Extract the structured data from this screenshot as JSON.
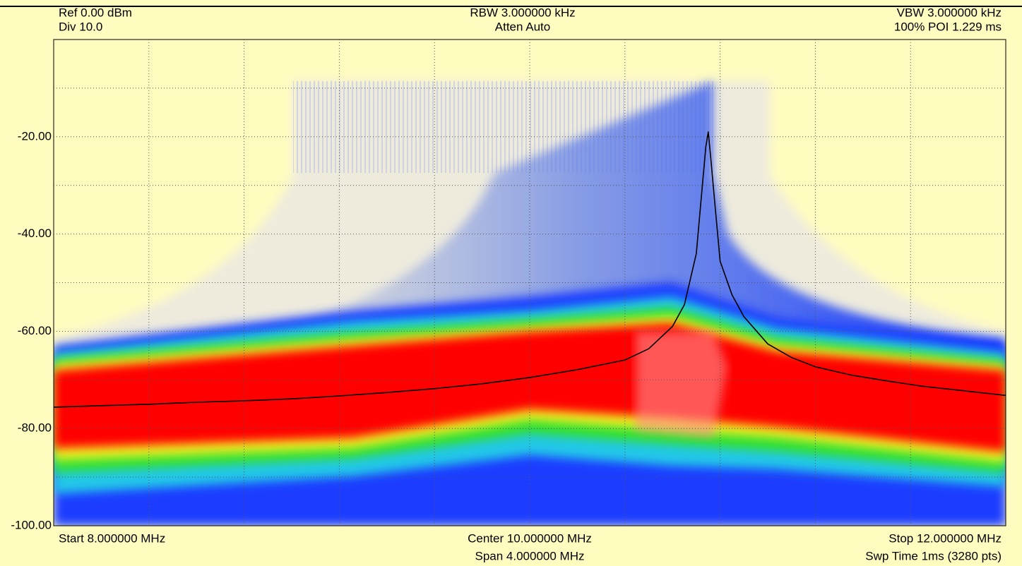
{
  "chart_data": {
    "type": "line",
    "annotations": [
      "Ref 0.00 dBm",
      "Div 10.0",
      "RBW 3.000000 kHz",
      "Atten Auto",
      "VBW 3.000000 kHz",
      "100% POI 1.229 ms",
      "Start 8.000000 MHz",
      "Center 10.000000 MHz",
      "Span 4.000000 MHz",
      "Stop 12.000000 MHz",
      "Swp Time 1ms (3280 pts)"
    ],
    "x": [
      8.0,
      8.2,
      8.4,
      8.6,
      8.8,
      9.0,
      9.2,
      9.4,
      9.6,
      9.8,
      10.0,
      10.2,
      10.4,
      10.5,
      10.6,
      10.65,
      10.7,
      10.72,
      10.74,
      10.75,
      10.76,
      10.78,
      10.8,
      10.85,
      10.9,
      11.0,
      11.1,
      11.2,
      11.35,
      11.5,
      11.65,
      11.8,
      12.0
    ],
    "values": [
      -75.6,
      -75.3,
      -75.0,
      -74.6,
      -74.3,
      -73.9,
      -73.3,
      -72.6,
      -71.8,
      -70.8,
      -69.5,
      -67.9,
      -65.9,
      -63.6,
      -59.0,
      -54.5,
      -44.0,
      -33.0,
      -22.0,
      -19.0,
      -24.0,
      -35.0,
      -45.6,
      -52.5,
      -57.0,
      -62.6,
      -65.4,
      -67.3,
      -69.0,
      -70.2,
      -71.3,
      -72.1,
      -73.2
    ],
    "color": "#000000",
    "xlim": [
      8,
      12
    ],
    "ylim": [
      -100,
      0
    ],
    "xgrid": [
      8.4,
      8.8,
      9.2,
      9.6,
      10.0,
      10.4,
      10.8,
      11.2,
      11.6
    ],
    "yticks": [
      {
        "value": -20,
        "label": "-20.00"
      },
      {
        "value": -40,
        "label": "-40.00"
      },
      {
        "value": -60,
        "label": "-60.00"
      },
      {
        "value": -80,
        "label": "-80.00"
      },
      {
        "value": -100,
        "label": "-100.00"
      }
    ],
    "ygrid": [
      -10,
      -30,
      -50,
      -70,
      -90
    ],
    "grid": true
  }
}
